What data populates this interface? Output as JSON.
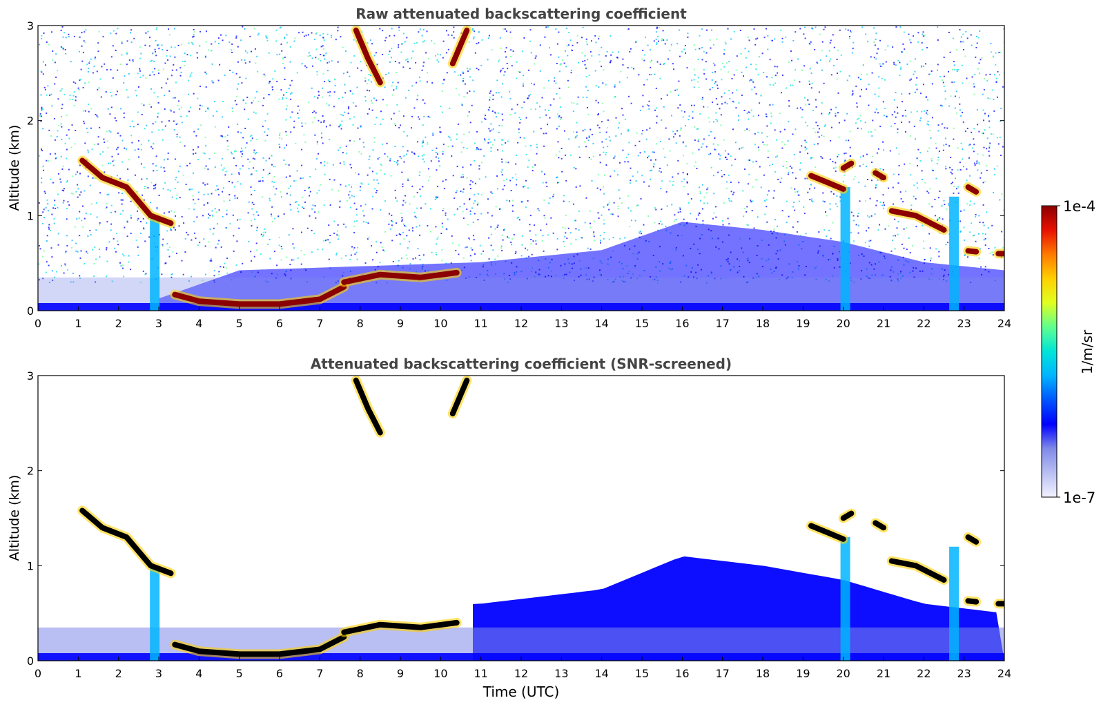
{
  "figure": {
    "top_title": "Raw attenuated backscattering coefficient",
    "bottom_title": "Attenuated backscattering coefficient (SNR-screened)",
    "colorbar_label": "1/m/sr",
    "colorbar_max_label": "1e-4",
    "colorbar_min_label": "1e-7"
  },
  "chart_data": [
    {
      "type": "heatmap",
      "title": "Raw attenuated backscattering coefficient",
      "xlabel": "",
      "ylabel": "Altitude (km)",
      "xlim": [
        0,
        24
      ],
      "ylim": [
        0,
        3
      ],
      "x_ticks": [
        "0",
        "1",
        "2",
        "3",
        "4",
        "5",
        "6",
        "7",
        "8",
        "9",
        "10",
        "11",
        "12",
        "13",
        "14",
        "15",
        "16",
        "17",
        "18",
        "19",
        "20",
        "21",
        "22",
        "23",
        "24"
      ],
      "y_ticks": [
        "0",
        "1",
        "2",
        "3"
      ],
      "color_scale": "log",
      "clim": [
        1e-07,
        0.0001
      ],
      "features": {
        "surface_noise_top_km": 0.35,
        "boundary_layer_top_km": [
          [
            0,
            0.2
          ],
          [
            3,
            0.15
          ],
          [
            5,
            0.5
          ],
          [
            8,
            0.55
          ],
          [
            11,
            0.6
          ],
          [
            14,
            0.75
          ],
          [
            16,
            1.1
          ],
          [
            18,
            1.0
          ],
          [
            20,
            0.85
          ],
          [
            22,
            0.6
          ],
          [
            24,
            0.5
          ]
        ],
        "cloud_layers": [
          {
            "x": [
              1.1,
              1.6,
              2.2,
              2.8,
              3.3
            ],
            "y": [
              1.58,
              1.4,
              1.3,
              1.0,
              0.92
            ]
          },
          {
            "x": [
              3.4,
              4.0,
              5.0,
              6.0,
              7.0,
              7.6
            ],
            "y": [
              0.17,
              0.1,
              0.07,
              0.07,
              0.12,
              0.25
            ]
          },
          {
            "x": [
              7.6,
              8.5,
              9.5,
              10.4
            ],
            "y": [
              0.3,
              0.38,
              0.35,
              0.4
            ]
          },
          {
            "x": [
              7.9,
              8.2,
              8.5
            ],
            "y": [
              2.95,
              2.65,
              2.4
            ]
          },
          {
            "x": [
              10.3,
              10.5,
              10.65
            ],
            "y": [
              2.6,
              2.8,
              2.95
            ]
          },
          {
            "x": [
              19.2,
              19.6,
              20.0
            ],
            "y": [
              1.42,
              1.35,
              1.28
            ]
          },
          {
            "x": [
              20.0,
              20.2
            ],
            "y": [
              1.5,
              1.55
            ]
          },
          {
            "x": [
              20.8,
              21.0
            ],
            "y": [
              1.45,
              1.4
            ]
          },
          {
            "x": [
              21.2,
              21.8,
              22.5
            ],
            "y": [
              1.05,
              1.0,
              0.85
            ]
          },
          {
            "x": [
              23.1,
              23.3
            ],
            "y": [
              1.3,
              1.25
            ]
          },
          {
            "x": [
              23.1,
              23.3
            ],
            "y": [
              0.63,
              0.62
            ]
          },
          {
            "x": [
              23.85,
              24.0
            ],
            "y": [
              0.6,
              0.6
            ]
          }
        ],
        "precipitation_shafts": [
          {
            "x": 2.9,
            "top_km": 1.0
          },
          {
            "x": 20.05,
            "top_km": 1.3
          },
          {
            "x": 22.75,
            "top_km": 1.2
          }
        ]
      }
    },
    {
      "type": "heatmap",
      "title": "Attenuated backscattering coefficient (SNR-screened)",
      "xlabel": "Time (UTC)",
      "ylabel": "Altitude (km)",
      "xlim": [
        0,
        24
      ],
      "ylim": [
        0,
        3
      ],
      "x_ticks": [
        "0",
        "1",
        "2",
        "3",
        "4",
        "5",
        "6",
        "7",
        "8",
        "9",
        "10",
        "11",
        "12",
        "13",
        "14",
        "15",
        "16",
        "17",
        "18",
        "19",
        "20",
        "21",
        "22",
        "23",
        "24"
      ],
      "y_ticks": [
        "0",
        "1",
        "2",
        "3"
      ],
      "color_scale": "log",
      "clim": [
        1e-07,
        0.0001
      ],
      "screened": true
    }
  ],
  "colorbar": {
    "stops": [
      "#f2f2ff",
      "#b9bff2",
      "#7f8ae8",
      "#0000ff",
      "#0055ff",
      "#00b4ff",
      "#00e5d8",
      "#5fff8f",
      "#e0ff20",
      "#ffd000",
      "#ff7a00",
      "#e81000",
      "#8b0000"
    ]
  }
}
